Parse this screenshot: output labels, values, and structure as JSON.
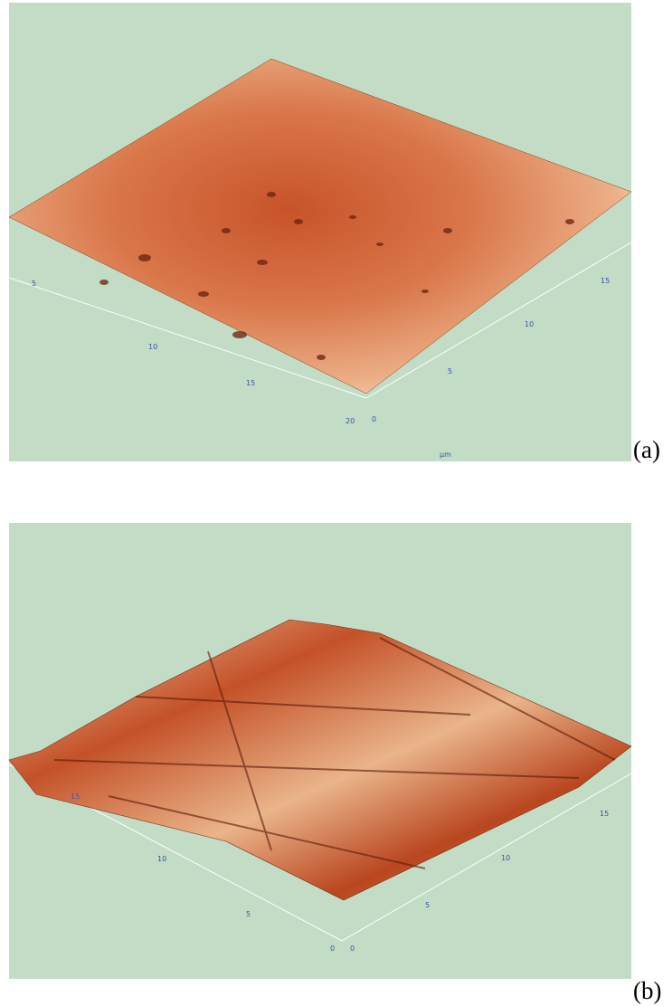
{
  "panels": [
    {
      "label": "(a)",
      "left_axis": [
        5,
        10,
        15,
        20
      ],
      "right_axis": [
        0,
        5,
        10,
        15
      ],
      "unit": "µm"
    },
    {
      "label": "(b)",
      "left_axis": [
        15,
        10,
        5,
        0
      ],
      "right_axis": [
        0,
        5,
        10,
        15
      ]
    }
  ]
}
